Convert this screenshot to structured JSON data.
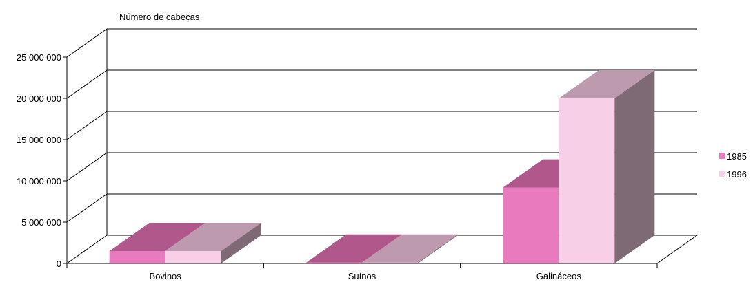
{
  "chart_data": {
    "type": "bar",
    "title": "",
    "ylabel": "Número de cabeças",
    "xlabel": "",
    "categories": [
      "Bovinos",
      "Suínos",
      "Galináceos"
    ],
    "series": [
      {
        "name": "1985",
        "values": [
          1500000,
          100000,
          9200000
        ],
        "color": "#e87bbd",
        "top_color": "#b0578b",
        "side_color": "#b0578b"
      },
      {
        "name": "1996",
        "values": [
          1500000,
          100000,
          20000000
        ],
        "color": "#f7cfe7",
        "top_color": "#bd9aae",
        "side_color": "#7e6a75"
      }
    ],
    "yticks": [
      "0",
      "5 000 000",
      "10 000 000",
      "15 000 000",
      "20 000 000",
      "25 000 000"
    ],
    "tick_values": [
      0,
      5000000,
      10000000,
      15000000,
      20000000,
      25000000
    ],
    "ylim": [
      0,
      25000000
    ],
    "grid": true,
    "legend_position": "right",
    "projection": "3d"
  }
}
